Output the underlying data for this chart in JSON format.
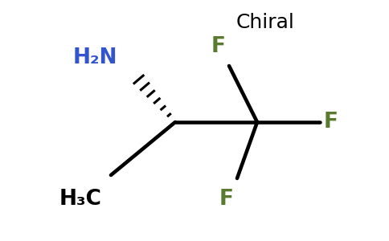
{
  "background_color": "#ffffff",
  "chiral_label": "Chiral",
  "chiral_label_color": "#000000",
  "chiral_label_fontsize": 18,
  "h2n_label": "H₂N",
  "h2n_color": "#3355cc",
  "h2n_fontsize": 19,
  "h3c_label": "H₃C",
  "h3c_color": "#000000",
  "h3c_fontsize": 19,
  "F_color": "#5a7a30",
  "F_fontsize": 19,
  "line_width": 2.8,
  "n_hash": 6
}
